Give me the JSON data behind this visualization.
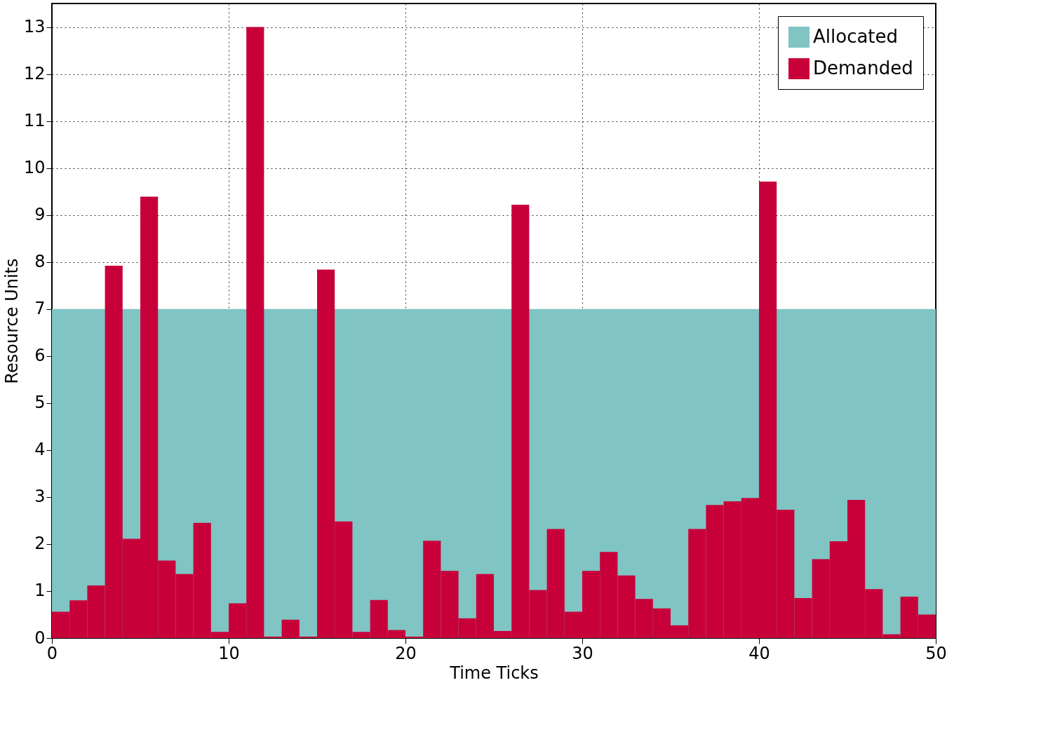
{
  "chart_data": {
    "type": "histogram",
    "xlabel": "Time Ticks",
    "ylabel": "Resource Units",
    "bins": [
      0,
      1,
      2,
      3,
      4,
      5,
      6,
      7,
      8,
      9,
      10,
      11,
      12,
      13,
      14,
      15,
      16,
      17,
      18,
      19,
      20,
      21,
      22,
      23,
      24,
      25,
      26,
      27,
      28,
      29,
      30,
      31,
      32,
      33,
      34,
      35,
      36,
      37,
      38,
      39,
      40,
      41,
      42,
      43,
      44,
      45,
      46,
      47,
      48,
      49,
      50
    ],
    "series": [
      {
        "name": "Allocated",
        "type": "area",
        "color": "#80c4c4",
        "x": [
          0,
          50
        ],
        "values": [
          7,
          7
        ]
      },
      {
        "name": "Demanded",
        "color": "#c8003a",
        "values": [
          0.56,
          0.8,
          1.12,
          7.92,
          2.11,
          9.39,
          1.65,
          1.36,
          2.45,
          0.13,
          0.74,
          13.0,
          0.03,
          0.39,
          0.03,
          7.84,
          2.48,
          0.13,
          0.81,
          0.17,
          0.03,
          2.07,
          1.43,
          0.42,
          1.36,
          0.15,
          9.22,
          1.02,
          2.32,
          0.56,
          1.43,
          1.83,
          1.33,
          0.83,
          0.63,
          0.27,
          2.32,
          2.83,
          2.91,
          2.98,
          9.71,
          2.73,
          0.85,
          1.68,
          2.06,
          2.94,
          1.04,
          0.08,
          0.88,
          0.5
        ]
      }
    ],
    "xlim": [
      0,
      50
    ],
    "ylim": [
      0,
      13.5
    ],
    "xticks": [
      0,
      10,
      20,
      30,
      40,
      50
    ],
    "yticks": [
      0,
      1,
      2,
      3,
      4,
      5,
      6,
      7,
      8,
      9,
      10,
      11,
      12,
      13
    ],
    "grid": true,
    "legend": "top right"
  }
}
